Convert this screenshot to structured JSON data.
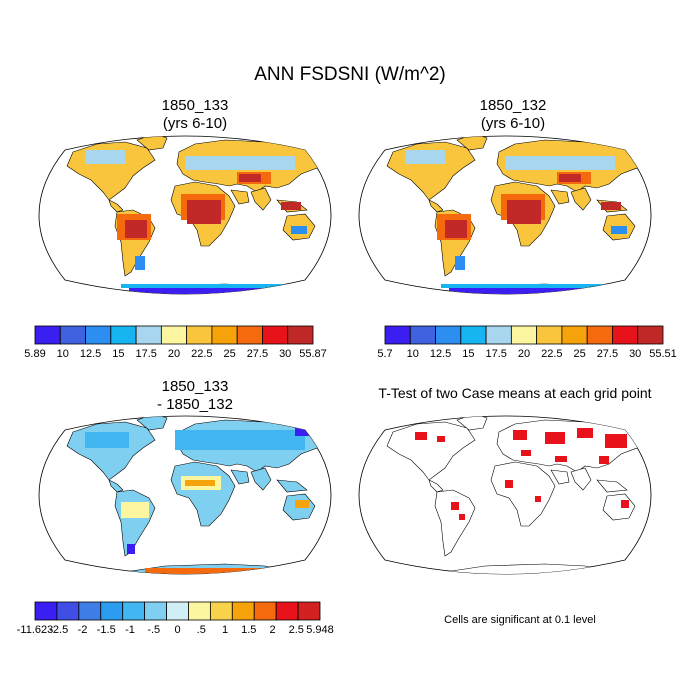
{
  "title": "ANN FSDSNI (W/m^2)",
  "panels": {
    "top_left": {
      "title1": "1850_133",
      "title2": "(yrs 6-10)"
    },
    "top_right": {
      "title1": "1850_132",
      "title2": "(yrs 6-10)"
    },
    "bottom_left": {
      "title1": "1850_133",
      "title2": "- 1850_132"
    },
    "bottom_right": {
      "title": "T-Test of two Case means at each grid point",
      "footnote": "Cells are significant at 0.1 level"
    }
  },
  "colorbars": {
    "top_left": {
      "labels": [
        "5.89",
        "10",
        "12.5",
        "15",
        "17.5",
        "20",
        "22.5",
        "25",
        "27.5",
        "30",
        "55.87"
      ],
      "colors": [
        "#3a1ef2",
        "#3f62e0",
        "#2c8ef0",
        "#16b4f0",
        "#a8d6ee",
        "#fdf6a0",
        "#f8c53c",
        "#f6a20a",
        "#f46a0c",
        "#e8131a",
        "#c12828"
      ]
    },
    "top_right": {
      "labels": [
        "5.7",
        "10",
        "12.5",
        "15",
        "17.5",
        "20",
        "22.5",
        "25",
        "27.5",
        "30",
        "55.51"
      ],
      "colors": [
        "#3a1ef2",
        "#3f62e0",
        "#2c8ef0",
        "#16b4f0",
        "#a8d6ee",
        "#fdf6a0",
        "#f8c53c",
        "#f6a20a",
        "#f46a0c",
        "#e8131a",
        "#c12828"
      ]
    },
    "bottom_left": {
      "labels": [
        "-11.623",
        "-2.5",
        "-2",
        "-1.5",
        "-1",
        "-.5",
        "0",
        ".5",
        "1",
        "1.5",
        "2",
        "2.5",
        "5.948"
      ],
      "colors": [
        "#3a1ef2",
        "#3f4fe6",
        "#3f7ee6",
        "#2c9cf0",
        "#41b6f0",
        "#7fcff0",
        "#cfeef6",
        "#fdf6a0",
        "#f8d24a",
        "#f6a20a",
        "#f46a0c",
        "#e8131a",
        "#d32020"
      ]
    }
  }
}
